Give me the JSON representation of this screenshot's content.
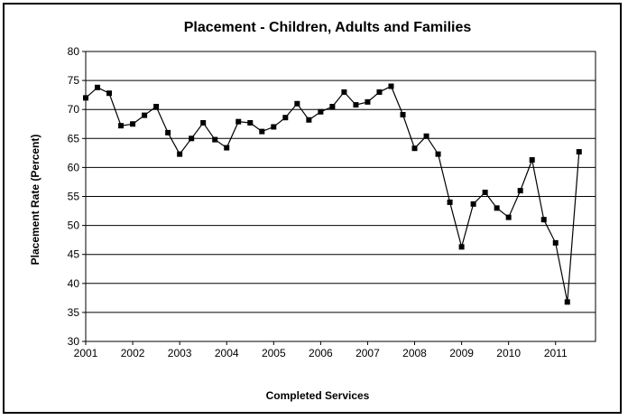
{
  "chart_data": {
    "type": "line",
    "title": "Placement - Children, Adults and Families",
    "xlabel": "Completed Services",
    "ylabel": "Placement Rate (Percent)",
    "ylim": [
      30,
      80
    ],
    "yticks": [
      30,
      35,
      40,
      45,
      50,
      55,
      60,
      65,
      70,
      75,
      80
    ],
    "xlim": [
      2001,
      2011.85
    ],
    "xtick_labels": [
      "2001",
      "2002",
      "2003",
      "2004",
      "2005",
      "2006",
      "2007",
      "2008",
      "2009",
      "2010",
      "2011"
    ],
    "grid": "horizontal",
    "legend": "none",
    "marker": "square",
    "line_color": "#000000",
    "series": [
      {
        "x": [
          2001.0,
          2001.25,
          2001.5,
          2001.75,
          2002.0,
          2002.25,
          2002.5,
          2002.75,
          2003.0,
          2003.25,
          2003.5,
          2003.75,
          2004.0,
          2004.25,
          2004.5,
          2004.75,
          2005.0,
          2005.25,
          2005.5,
          2005.75,
          2006.0,
          2006.25,
          2006.5,
          2006.75,
          2007.0,
          2007.25,
          2007.5,
          2007.75,
          2008.0,
          2008.25,
          2008.5,
          2008.75,
          2009.0,
          2009.25,
          2009.5,
          2009.75,
          2010.0,
          2010.25,
          2010.5,
          2010.75,
          2011.0,
          2011.25,
          2011.5
        ],
        "values": [
          72.0,
          73.8,
          72.8,
          67.2,
          67.5,
          69.0,
          70.5,
          66.0,
          62.3,
          65.0,
          67.7,
          64.8,
          63.4,
          67.9,
          67.7,
          66.2,
          67.0,
          68.6,
          71.0,
          68.2,
          69.6,
          70.5,
          73.0,
          70.8,
          71.3,
          73.0,
          74.0,
          69.1,
          63.3,
          65.4,
          62.3,
          54.0,
          46.3,
          53.7,
          55.7,
          53.0,
          51.4,
          56.0,
          61.3,
          51.0,
          47.0,
          36.8,
          62.7
        ]
      }
    ]
  }
}
